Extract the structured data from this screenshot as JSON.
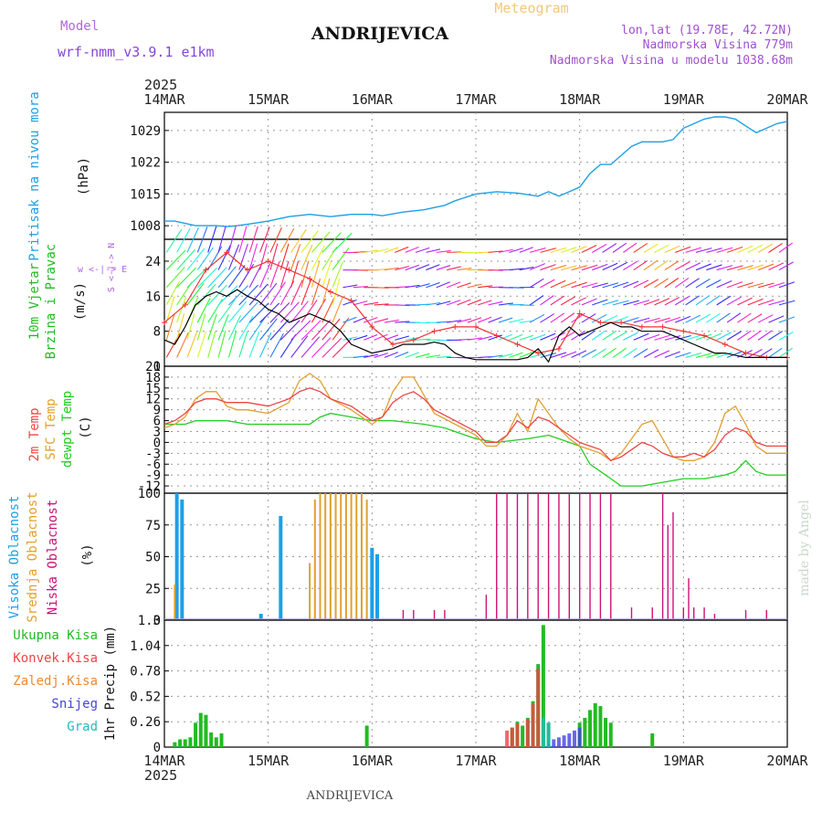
{
  "header": {
    "model_label": "Model",
    "model_name": "wrf-nmm_v3.9.1 e1km",
    "station": "ANDRIJEVICA",
    "meteogram": "Meteogram",
    "lonlat": "lon,lat (19.78E, 42.72N)",
    "elevation": "Nadmorska Visina 779m",
    "model_elevation": "Nadmorska Visina u modelu 1038.68m",
    "footer_station": "ANDRIJEVICA",
    "credit": "made by Angel"
  },
  "time_axis": {
    "year": "2025",
    "labels": [
      "14MAR",
      "15MAR",
      "16MAR",
      "17MAR",
      "18MAR",
      "19MAR",
      "20MAR"
    ]
  },
  "colors": {
    "pressure": "#1ca0e6",
    "wind_speed": "#000000",
    "gust": "#ee3333",
    "t2m": "#ee4444",
    "tsfc": "#e0a030",
    "dewpt": "#22cc22",
    "cloud_high": "#1ca0e6",
    "cloud_mid": "#e0a030",
    "cloud_low": "#cc1177",
    "precip_total": "#22bb22",
    "precip_conv": "#ee4444",
    "precip_frz": "#ee8833",
    "precip_snow": "#4444dd",
    "precip_grad": "#22bbbb",
    "label_purple": "#b066dd"
  },
  "chart_data": [
    {
      "type": "line",
      "title": "",
      "ylabel_main": "Pritisak na nivou mora",
      "ylabel_unit": "(hPa)",
      "yticks": [
        "1008",
        "1015",
        "1022",
        "1029"
      ],
      "ylim": [
        1005,
        1033
      ],
      "x_unit": "days since 14MAR 00UTC",
      "series": [
        {
          "name": "Pritisak na nivou mora",
          "x": [
            0,
            0.1,
            0.2,
            0.3,
            0.4,
            0.5,
            0.6,
            0.7,
            0.8,
            1.0,
            1.2,
            1.4,
            1.6,
            1.8,
            2.0,
            2.1,
            2.3,
            2.5,
            2.7,
            2.8,
            3.0,
            3.2,
            3.4,
            3.6,
            3.7,
            3.8,
            3.9,
            4.0,
            4.1,
            4.2,
            4.3,
            4.5,
            4.6,
            4.8,
            4.9,
            5.0,
            5.1,
            5.2,
            5.3,
            5.4,
            5.5,
            5.6,
            5.7,
            5.8,
            5.9,
            6.0
          ],
          "values": [
            1009,
            1009,
            1008.5,
            1008,
            1008,
            1008,
            1007.8,
            1008,
            1008.3,
            1009,
            1010,
            1010.5,
            1010,
            1010.5,
            1010.5,
            1010.2,
            1011,
            1011.5,
            1012.5,
            1013.5,
            1015,
            1015.5,
            1015.2,
            1014.5,
            1015.5,
            1014.5,
            1015.5,
            1016.5,
            1019.5,
            1021.5,
            1021.5,
            1025.5,
            1026.5,
            1026.5,
            1027,
            1029.5,
            1030.5,
            1031.5,
            1032,
            1032,
            1031.5,
            1030,
            1028.5,
            1029.5,
            1030.5,
            1031
          ]
        }
      ]
    },
    {
      "type": "line",
      "title": "",
      "ylabel_main": "10m Vjetar",
      "ylabel_sub": "Brzina i Pravac",
      "ylabel_unit": "(m/s)",
      "direction_legend": "w <-|-> E",
      "direction_legend_v": "S <-|-> N",
      "yticks": [
        "0",
        "8",
        "16",
        "24"
      ],
      "ylim": [
        0,
        29
      ],
      "series": [
        {
          "name": "Brzina",
          "x": [
            0,
            0.1,
            0.2,
            0.3,
            0.4,
            0.5,
            0.6,
            0.7,
            0.8,
            0.9,
            1.0,
            1.1,
            1.2,
            1.3,
            1.4,
            1.5,
            1.6,
            1.7,
            1.8,
            1.9,
            2.0,
            2.1,
            2.2,
            2.3,
            2.4,
            2.5,
            2.6,
            2.7,
            2.8,
            2.9,
            3.0,
            3.2,
            3.4,
            3.5,
            3.6,
            3.7,
            3.8,
            3.9,
            4.0,
            4.1,
            4.2,
            4.3,
            4.4,
            4.5,
            4.6,
            4.7,
            4.8,
            4.9,
            5.0,
            5.1,
            5.2,
            5.3,
            5.4,
            5.6,
            5.8,
            6.0
          ],
          "values": [
            6,
            5,
            9,
            14,
            16,
            17,
            16,
            17.5,
            16,
            15,
            13,
            12,
            10,
            11,
            12,
            11,
            10,
            8,
            5,
            4,
            3,
            3.5,
            4,
            5,
            5,
            5,
            5.5,
            5,
            3,
            2,
            1.5,
            1.5,
            1.5,
            2,
            4,
            1,
            7,
            9,
            7,
            8,
            9,
            10,
            9,
            9,
            8,
            8,
            8,
            7,
            6,
            5,
            4,
            3,
            3,
            2,
            2,
            2
          ]
        },
        {
          "name": "Udari",
          "x": [
            0,
            0.2,
            0.4,
            0.6,
            0.8,
            1.0,
            1.2,
            1.4,
            1.6,
            1.8,
            2.0,
            2.2,
            2.4,
            2.6,
            2.8,
            3.0,
            3.2,
            3.4,
            3.6,
            3.8,
            4.0,
            4.2,
            4.4,
            4.6,
            4.8,
            5.0,
            5.2,
            5.4,
            5.6,
            5.8,
            6.0
          ],
          "values": [
            10,
            14,
            22,
            26,
            22,
            24,
            22,
            20,
            17,
            15,
            9,
            5,
            6,
            8,
            9,
            9,
            7,
            5,
            3,
            4,
            12,
            10,
            10,
            9,
            9,
            8,
            7,
            5,
            3,
            2,
            2
          ]
        }
      ]
    },
    {
      "type": "line",
      "title": "",
      "ylabel_series": [
        "2m Temp",
        "SFC Temp",
        "dewpt Temp"
      ],
      "ylabel_unit": "(C)",
      "yticks": [
        "-12",
        "-9",
        "-6",
        "-3",
        "0",
        "3",
        "6",
        "9",
        "12",
        "15",
        "18",
        "21"
      ],
      "ylim": [
        -14,
        21
      ],
      "series": [
        {
          "name": "2m Temp",
          "x": [
            0,
            0.1,
            0.2,
            0.3,
            0.4,
            0.5,
            0.6,
            0.7,
            0.8,
            1.0,
            1.2,
            1.3,
            1.4,
            1.5,
            1.6,
            1.8,
            2.0,
            2.1,
            2.2,
            2.3,
            2.4,
            2.5,
            2.6,
            2.8,
            3.0,
            3.1,
            3.2,
            3.3,
            3.4,
            3.5,
            3.6,
            3.7,
            3.8,
            3.9,
            4.0,
            4.1,
            4.2,
            4.3,
            4.4,
            4.5,
            4.6,
            4.7,
            4.8,
            4.9,
            5.0,
            5.1,
            5.2,
            5.3,
            5.4,
            5.5,
            5.6,
            5.7,
            5.8,
            6.0
          ],
          "values": [
            5,
            6,
            8,
            11,
            12,
            12,
            11,
            11,
            11,
            10,
            12,
            14,
            15,
            14,
            12,
            10,
            6,
            7,
            11,
            13,
            14,
            12,
            9,
            6,
            3,
            0,
            0,
            2,
            6,
            4,
            7,
            6,
            4,
            2,
            0,
            -1,
            -2,
            -5,
            -4,
            -2,
            0,
            -1,
            -3,
            -4,
            -4,
            -3,
            -4,
            -2,
            2,
            4,
            3,
            0,
            -1,
            -1
          ]
        },
        {
          "name": "SFC Temp",
          "x": [
            0,
            0.1,
            0.2,
            0.3,
            0.4,
            0.5,
            0.6,
            0.7,
            0.8,
            1.0,
            1.2,
            1.3,
            1.4,
            1.5,
            1.6,
            1.8,
            2.0,
            2.1,
            2.2,
            2.3,
            2.4,
            2.5,
            2.6,
            2.8,
            3.0,
            3.1,
            3.2,
            3.3,
            3.4,
            3.5,
            3.6,
            3.7,
            3.8,
            3.9,
            4.0,
            4.1,
            4.2,
            4.3,
            4.4,
            4.5,
            4.6,
            4.7,
            4.8,
            4.9,
            5.0,
            5.1,
            5.2,
            5.3,
            5.4,
            5.5,
            5.6,
            5.7,
            5.8,
            6.0
          ],
          "values": [
            4,
            5,
            7,
            12,
            14,
            14,
            10,
            9,
            9,
            8,
            11,
            17,
            19,
            17,
            12,
            9,
            5,
            7,
            14,
            18,
            18,
            13,
            8,
            5,
            2,
            -1,
            -1,
            2,
            8,
            3,
            12,
            8,
            4,
            1,
            -1,
            -2,
            -3,
            -5,
            -3,
            1,
            5,
            6,
            1,
            -4,
            -5,
            -5,
            -4,
            0,
            8,
            10,
            5,
            -1,
            -3,
            -3
          ]
        },
        {
          "name": "dewpt Temp",
          "x": [
            0,
            0.2,
            0.3,
            0.4,
            0.5,
            0.6,
            0.8,
            1.0,
            1.2,
            1.4,
            1.5,
            1.6,
            1.8,
            2.0,
            2.2,
            2.5,
            2.7,
            2.9,
            3.0,
            3.2,
            3.5,
            3.7,
            3.8,
            4.0,
            4.1,
            4.2,
            4.3,
            4.4,
            4.6,
            4.8,
            5.0,
            5.2,
            5.4,
            5.5,
            5.6,
            5.7,
            5.8,
            6.0
          ],
          "values": [
            5,
            5,
            6,
            6,
            6,
            6,
            5,
            5,
            5,
            5,
            7,
            8,
            7,
            6,
            6,
            5,
            4,
            2,
            1,
            0,
            1,
            2,
            1,
            -1,
            -6,
            -8,
            -10,
            -12,
            -12,
            -11,
            -10,
            -10,
            -9,
            -8,
            -5,
            -8,
            -9,
            -9
          ]
        }
      ]
    },
    {
      "type": "bar",
      "title": "",
      "ylabel_series": [
        "Visoka Oblacnost",
        "Srednja Oblacnost",
        "Niska Oblacnost"
      ],
      "ylabel_unit": "(%)",
      "yticks": [
        "0",
        "25",
        "50",
        "75",
        "100"
      ],
      "ylim": [
        0,
        100
      ],
      "series": [
        {
          "name": "Visoka Oblacnost",
          "x": [
            0.12,
            0.17,
            0.93,
            1.12,
            2.0,
            2.05
          ],
          "values": [
            100,
            95,
            5,
            82,
            57,
            52
          ]
        },
        {
          "name": "Srednja Oblacnost",
          "x": [
            0.1,
            1.4,
            1.45,
            1.5,
            1.55,
            1.6,
            1.65,
            1.7,
            1.75,
            1.8,
            1.85,
            1.9,
            1.95
          ],
          "values": [
            28,
            45,
            95,
            100,
            100,
            100,
            100,
            100,
            100,
            100,
            100,
            100,
            95
          ]
        },
        {
          "name": "Niska Oblacnost",
          "x": [
            2.3,
            2.4,
            2.6,
            2.7,
            3.1,
            3.2,
            3.3,
            3.4,
            3.5,
            3.6,
            3.7,
            3.8,
            3.9,
            4.0,
            4.1,
            4.2,
            4.3,
            4.5,
            4.7,
            4.8,
            4.85,
            4.9,
            5.0,
            5.05,
            5.1,
            5.2,
            5.3,
            5.6,
            5.8
          ],
          "values": [
            8,
            8,
            8,
            8,
            20,
            100,
            100,
            100,
            100,
            100,
            100,
            100,
            100,
            100,
            100,
            100,
            100,
            10,
            10,
            100,
            75,
            85,
            10,
            33,
            10,
            10,
            5,
            8,
            8
          ]
        }
      ]
    },
    {
      "type": "bar",
      "title": "",
      "ylabel_main": "1hr Precip",
      "ylabel_unit": "(mm)",
      "legend": [
        "Ukupna Kisa",
        "Konvek.Kisa",
        "Zaledj.Kisa",
        "Snijeg",
        "Grad"
      ],
      "yticks": [
        "0",
        "0.26",
        "0.52",
        "0.78",
        "1.04",
        "1.3"
      ],
      "ylim": [
        0,
        1.3
      ],
      "series": [
        {
          "name": "Ukupna Kisa",
          "x": [
            0.1,
            0.15,
            0.2,
            0.25,
            0.3,
            0.35,
            0.4,
            0.45,
            0.5,
            0.55,
            1.95,
            3.35,
            3.4,
            3.45,
            3.5,
            3.55,
            3.6,
            3.65,
            3.7,
            4.0,
            4.05,
            4.1,
            4.15,
            4.2,
            4.25,
            4.3,
            4.7
          ],
          "values": [
            0.05,
            0.08,
            0.08,
            0.1,
            0.25,
            0.35,
            0.33,
            0.15,
            0.1,
            0.14,
            0.22,
            0.2,
            0.26,
            0.22,
            0.3,
            0.47,
            0.85,
            1.25,
            0.25,
            0.25,
            0.3,
            0.38,
            0.45,
            0.42,
            0.3,
            0.25,
            0.14
          ]
        },
        {
          "name": "Konvek.Kisa",
          "x": [
            3.3,
            3.35,
            3.4,
            3.5,
            3.55,
            3.6
          ],
          "values": [
            0.17,
            0.2,
            0.24,
            0.28,
            0.44,
            0.8
          ]
        },
        {
          "name": "Snijeg",
          "x": [
            3.7,
            3.75,
            3.8,
            3.85,
            3.9,
            3.95,
            4.0
          ],
          "values": [
            0.03,
            0.08,
            0.1,
            0.12,
            0.14,
            0.17,
            0.2
          ]
        },
        {
          "name": "Grad",
          "x": [
            3.65,
            3.7
          ],
          "values": [
            0.3,
            0.25
          ]
        }
      ]
    }
  ]
}
